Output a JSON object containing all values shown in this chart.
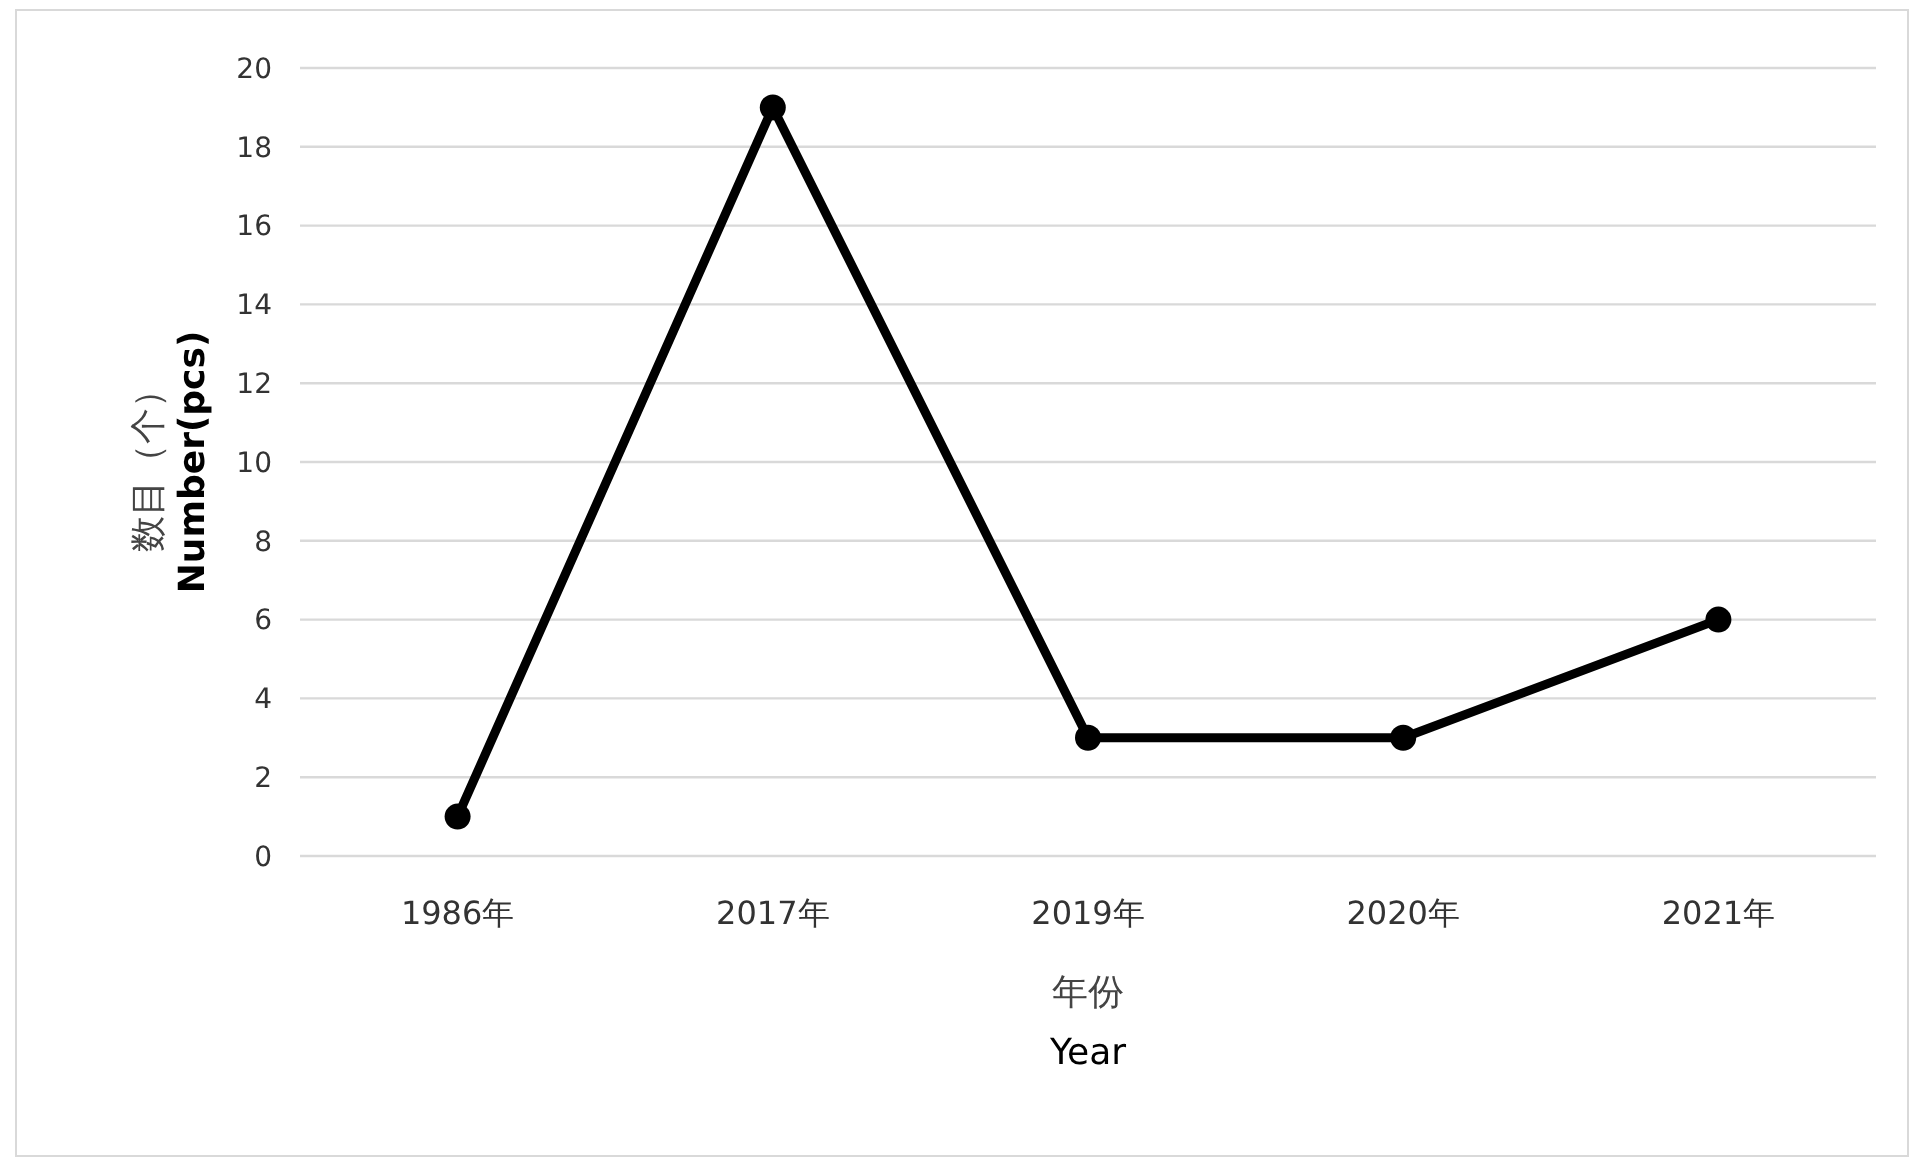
{
  "chart_data": {
    "type": "line",
    "categories": [
      "1986年",
      "2017年",
      "2019年",
      "2020年",
      "2021年"
    ],
    "series": [
      {
        "color": "#000000",
        "values": [
          1,
          19,
          3,
          3,
          6
        ]
      }
    ],
    "ylim": [
      0,
      20
    ],
    "yticks": [
      0,
      2,
      4,
      6,
      8,
      10,
      12,
      14,
      16,
      18,
      20
    ],
    "grid": "y",
    "marker": "circle",
    "line_style": "solid",
    "xlabel": "年份\nYear",
    "ylabel": "数目（个）\nNumber(pcs)"
  }
}
